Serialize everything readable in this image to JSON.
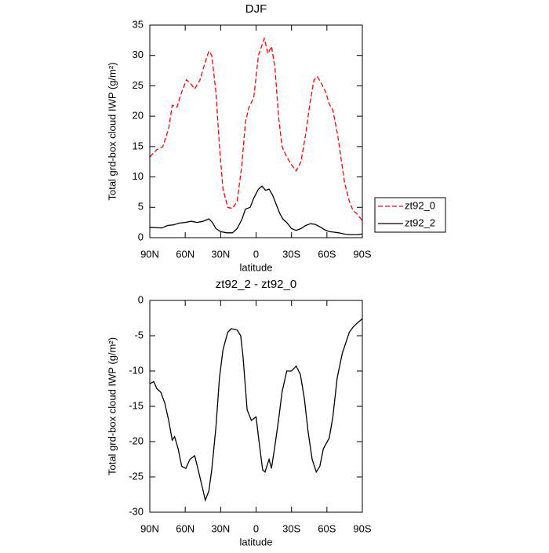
{
  "chart_data": [
    {
      "type": "line",
      "title": "DJF",
      "xlabel": "latitude",
      "ylabel": "Total grd-box cloud IWP (g/m²)",
      "xlim": [
        90,
        -90
      ],
      "xticks": [
        {
          "value": 90,
          "label": "90N"
        },
        {
          "value": 60,
          "label": "60N"
        },
        {
          "value": 30,
          "label": "30N"
        },
        0,
        {
          "value": -30,
          "label": "30S"
        },
        {
          "value": -60,
          "label": "60S"
        },
        {
          "value": -90,
          "label": "90S"
        }
      ],
      "ylim": [
        0,
        35
      ],
      "yticks": [
        0,
        5,
        10,
        15,
        20,
        25,
        30,
        35
      ],
      "legend": "right",
      "series": [
        {
          "name": "zt92_0",
          "color": "#ff0000",
          "line_style": "dashed",
          "x": [
            90,
            84,
            79,
            74,
            71,
            67,
            63,
            59,
            56,
            52,
            47.5,
            43,
            40,
            37.5,
            34,
            31,
            28,
            24,
            20,
            16,
            12,
            9,
            6,
            2,
            -2,
            -7,
            -10,
            -13,
            -16,
            -19,
            -22,
            -26,
            -30,
            -34,
            -38,
            -42,
            -45.5,
            -49,
            -52,
            -55,
            -59,
            -62,
            -65,
            -69,
            -72,
            -75,
            -79,
            -82,
            -85,
            -90
          ],
          "values": [
            13.3,
            14.5,
            15,
            18,
            21.8,
            21.5,
            24,
            26,
            25.5,
            24.5,
            26,
            29,
            30.7,
            30,
            24,
            15,
            8,
            5,
            4.8,
            6,
            12,
            19,
            21.5,
            23,
            30,
            32.8,
            30.3,
            31.5,
            28,
            20,
            15,
            13.3,
            12,
            11,
            12.5,
            17,
            22,
            26,
            26.5,
            25.5,
            24,
            22,
            21,
            17,
            13,
            9,
            6,
            4.5,
            4,
            2.8
          ]
        },
        {
          "name": "zt92_2",
          "color": "#000000",
          "line_style": "solid",
          "x": [
            90,
            80,
            75,
            70,
            65,
            60,
            55,
            50,
            45,
            40,
            37,
            34,
            30,
            25,
            20,
            16,
            12,
            9,
            5,
            2,
            -2,
            -5,
            -8,
            -11,
            -14,
            -17,
            -20,
            -23,
            -26,
            -30,
            -34,
            -38,
            -42,
            -46,
            -50,
            -54,
            -58,
            -62,
            -66,
            -70,
            -75,
            -80,
            -85,
            -90
          ],
          "values": [
            1.7,
            1.6,
            2.0,
            2.1,
            2.4,
            2.5,
            2.7,
            2.5,
            2.7,
            3.1,
            2.5,
            1.5,
            1.0,
            0.8,
            0.8,
            1.5,
            3,
            4.7,
            5,
            6.5,
            8,
            8.5,
            7.8,
            8,
            7,
            5.5,
            4,
            3,
            2.5,
            1.5,
            1.2,
            1.5,
            2,
            2.3,
            2.2,
            1.8,
            1.3,
            1,
            0.9,
            0.8,
            0.6,
            0.5,
            0.5,
            0.6
          ]
        }
      ]
    },
    {
      "type": "line",
      "title": "zt92_2 - zt92_0",
      "xlabel": "latitude",
      "ylabel": "Total grd-box cloud IWP (g/m²)",
      "xlim": [
        90,
        -90
      ],
      "xticks": [
        {
          "value": 90,
          "label": "90N"
        },
        {
          "value": 60,
          "label": "60N"
        },
        {
          "value": 30,
          "label": "30N"
        },
        0,
        {
          "value": -30,
          "label": "30S"
        },
        {
          "value": -60,
          "label": "60S"
        },
        {
          "value": -90,
          "label": "90S"
        }
      ],
      "ylim": [
        -30,
        0
      ],
      "yticks": [
        -30,
        -25,
        -20,
        -15,
        -10,
        -5,
        0
      ],
      "series": [
        {
          "color": "#000000",
          "line_style": "solid",
          "x": [
            90,
            86.7,
            84,
            80.7,
            77.4,
            74,
            71,
            69,
            66,
            63,
            59.5,
            56,
            52,
            49,
            45.5,
            43,
            40,
            37.5,
            34,
            31,
            28,
            24,
            21,
            16,
            13,
            11,
            7.6,
            4,
            0,
            -2.5,
            -5.6,
            -7.6,
            -11,
            -13,
            -15.6,
            -19,
            -22,
            -26,
            -30,
            -34,
            -37.5,
            -41,
            -44,
            -47.5,
            -51,
            -54,
            -57,
            -62,
            -65,
            -68.7,
            -73,
            -79,
            -82,
            -85,
            -90
          ],
          "values": [
            -11.8,
            -11.5,
            -12.5,
            -13,
            -14.5,
            -17,
            -19.8,
            -19.3,
            -21,
            -23.5,
            -23.8,
            -22.5,
            -22,
            -24,
            -26.5,
            -28.3,
            -27,
            -24,
            -18,
            -11,
            -7,
            -4.5,
            -4,
            -4.2,
            -5,
            -8,
            -15.5,
            -17,
            -16.5,
            -20,
            -24,
            -24.3,
            -22.5,
            -23.8,
            -21,
            -17,
            -13,
            -10,
            -10,
            -9.3,
            -10.5,
            -14,
            -18.5,
            -22.5,
            -24.3,
            -23.5,
            -21,
            -19.5,
            -16.5,
            -11,
            -7.5,
            -4.5,
            -3.8,
            -3.3,
            -2.6
          ]
        }
      ]
    }
  ]
}
